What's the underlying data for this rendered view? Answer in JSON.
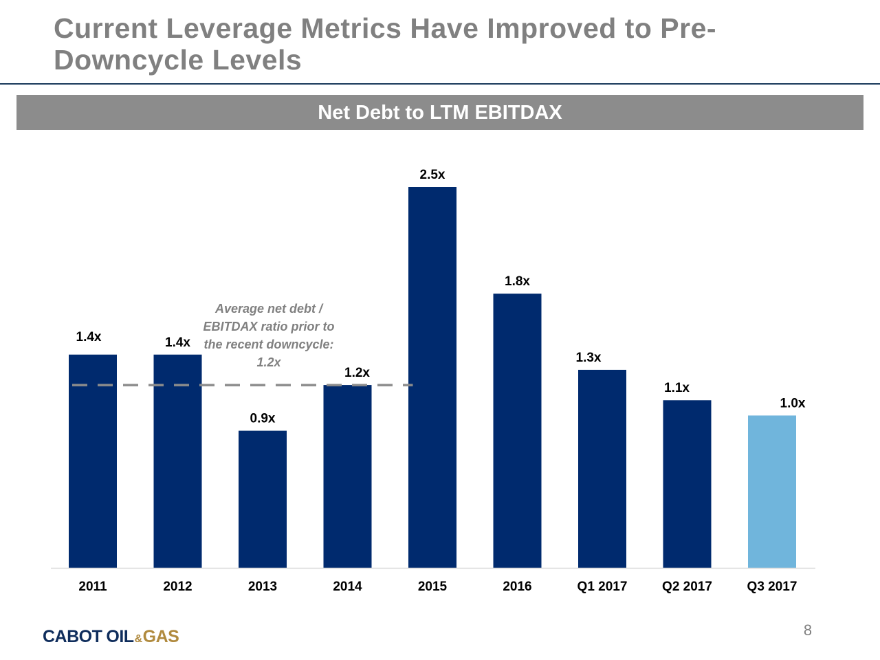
{
  "slide": {
    "title": "Current Leverage Metrics Have Improved to Pre-Downcycle Levels",
    "banner": "Net Debt to LTM EBITDAX",
    "annotation": "Average net debt / EBITDAX ratio prior to the recent downcycle: 1.2x",
    "logo": {
      "word1": "CABOT",
      "word2": "OIL",
      "amp": "&",
      "word3": "GAS"
    },
    "page_number": "8"
  },
  "colors": {
    "bar": "#002a6e",
    "highlight_bar": "#70b5dc",
    "reference_line": "#8c8c8c",
    "banner": "#8c8c8c",
    "title": "#808080"
  },
  "chart_data": {
    "type": "bar",
    "title": "Net Debt to LTM EBITDAX",
    "categories": [
      "2011",
      "2012",
      "2013",
      "2014",
      "2015",
      "2016",
      "Q1 2017",
      "Q2 2017",
      "Q3 2017"
    ],
    "values": [
      1.4,
      1.4,
      0.9,
      1.2,
      2.5,
      1.8,
      1.3,
      1.1,
      1.0
    ],
    "data_labels": [
      "1.4x",
      "1.4x",
      "0.9x",
      "1.2x",
      "2.5x",
      "1.8x",
      "1.3x",
      "1.1x",
      "1.0x"
    ],
    "highlighted_category": "Q3 2017",
    "reference_line": {
      "value": 1.2,
      "style": "dashed",
      "spans_categories": [
        "2011",
        "2012",
        "2013",
        "2014"
      ]
    },
    "ylim": [
      0,
      2.5
    ],
    "xlabel": "",
    "ylabel": "",
    "grid": false,
    "legend": "none"
  }
}
